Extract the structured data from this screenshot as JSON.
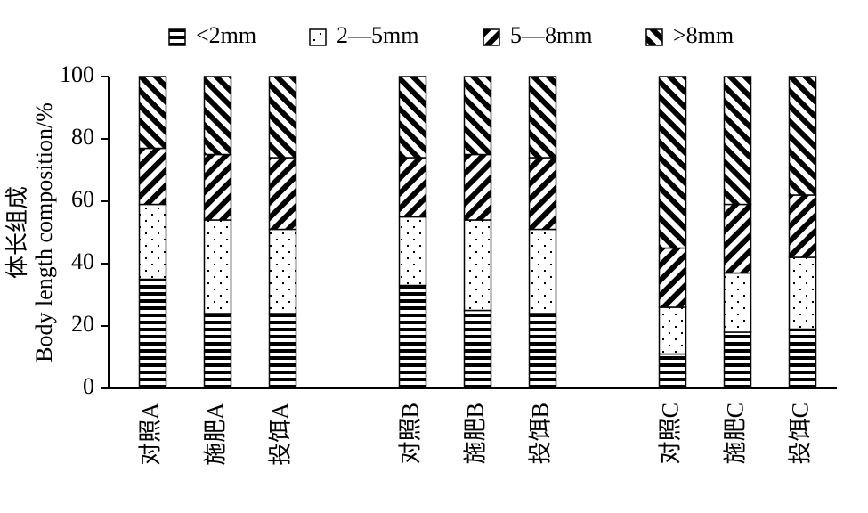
{
  "chart_data": {
    "type": "stacked_bar",
    "ylabel": [
      "体长组成",
      "Body length composition/%"
    ],
    "categories": [
      "对照A",
      "施肥A",
      "投饵A",
      null,
      "对照B",
      "施肥B",
      "投饵B",
      null,
      "对照C",
      "施肥C",
      "投饵C"
    ],
    "series": [
      {
        "name": "<2mm",
        "color": "#000000",
        "pattern": "horizontal",
        "values": [
          35,
          24,
          24,
          null,
          33,
          25,
          24,
          null,
          11,
          18,
          19
        ]
      },
      {
        "name": "2—5mm",
        "color": "#000000",
        "pattern": "dots",
        "values": [
          24,
          30,
          27,
          null,
          22,
          29,
          27,
          null,
          15,
          19,
          23
        ]
      },
      {
        "name": "5—8mm",
        "color": "#000000",
        "pattern": "backslash",
        "values": [
          18,
          21,
          23,
          null,
          19,
          21,
          23,
          null,
          19,
          22,
          20
        ]
      },
      {
        "name": ">8mm",
        "color": "#000000",
        "pattern": "slash",
        "values": [
          23,
          25,
          26,
          null,
          26,
          25,
          26,
          null,
          55,
          41,
          38
        ]
      }
    ],
    "ylim": [
      0,
      100
    ],
    "yticks": [
      0,
      20,
      40,
      60,
      80,
      100
    ],
    "legend": "top"
  }
}
